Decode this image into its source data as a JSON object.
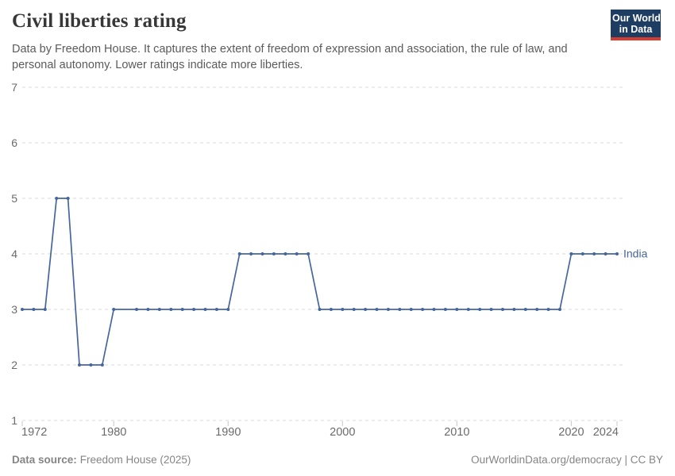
{
  "header": {
    "title": "Civil liberties rating",
    "subtitle": "Data by Freedom House. It captures the extent of freedom of expression and association, the rule of law, and personal autonomy. Lower ratings indicate more liberties.",
    "logo": {
      "line1": "Our World",
      "line2": "in Data",
      "bg_color": "#1d3d63",
      "accent_color": "#d73c32"
    }
  },
  "footer": {
    "source_label": "Data source:",
    "source_value": "Freedom House (2025)",
    "right_text": "OurWorldinData.org/democracy | CC BY"
  },
  "chart_data": {
    "type": "line",
    "title": "Civil liberties rating",
    "entity_label": "India",
    "xlim": [
      1972,
      2024
    ],
    "ylim": [
      1,
      7
    ],
    "yticks": [
      1,
      2,
      3,
      4,
      5,
      6,
      7
    ],
    "xticks": [
      1972,
      1980,
      1990,
      2000,
      2010,
      2020,
      2024
    ],
    "grid": "horizontal-dashed",
    "legend_position": "end-of-line",
    "line_color": "#44669c",
    "grid_color": "#d9d9d9",
    "tick_color": "#c8c8c8",
    "axis_label_color": "#6b6b6b",
    "note": "no data point for 1981",
    "series": [
      {
        "name": "India",
        "points": [
          [
            1972,
            3
          ],
          [
            1973,
            3
          ],
          [
            1974,
            3
          ],
          [
            1975,
            5
          ],
          [
            1976,
            5
          ],
          [
            1977,
            2
          ],
          [
            1978,
            2
          ],
          [
            1979,
            2
          ],
          [
            1980,
            3
          ],
          [
            1982,
            3
          ],
          [
            1983,
            3
          ],
          [
            1984,
            3
          ],
          [
            1985,
            3
          ],
          [
            1986,
            3
          ],
          [
            1987,
            3
          ],
          [
            1988,
            3
          ],
          [
            1989,
            3
          ],
          [
            1990,
            3
          ],
          [
            1991,
            4
          ],
          [
            1992,
            4
          ],
          [
            1993,
            4
          ],
          [
            1994,
            4
          ],
          [
            1995,
            4
          ],
          [
            1996,
            4
          ],
          [
            1997,
            4
          ],
          [
            1998,
            3
          ],
          [
            1999,
            3
          ],
          [
            2000,
            3
          ],
          [
            2001,
            3
          ],
          [
            2002,
            3
          ],
          [
            2003,
            3
          ],
          [
            2004,
            3
          ],
          [
            2005,
            3
          ],
          [
            2006,
            3
          ],
          [
            2007,
            3
          ],
          [
            2008,
            3
          ],
          [
            2009,
            3
          ],
          [
            2010,
            3
          ],
          [
            2011,
            3
          ],
          [
            2012,
            3
          ],
          [
            2013,
            3
          ],
          [
            2014,
            3
          ],
          [
            2015,
            3
          ],
          [
            2016,
            3
          ],
          [
            2017,
            3
          ],
          [
            2018,
            3
          ],
          [
            2019,
            3
          ],
          [
            2020,
            4
          ],
          [
            2021,
            4
          ],
          [
            2022,
            4
          ],
          [
            2023,
            4
          ],
          [
            2024,
            4
          ]
        ]
      }
    ]
  }
}
